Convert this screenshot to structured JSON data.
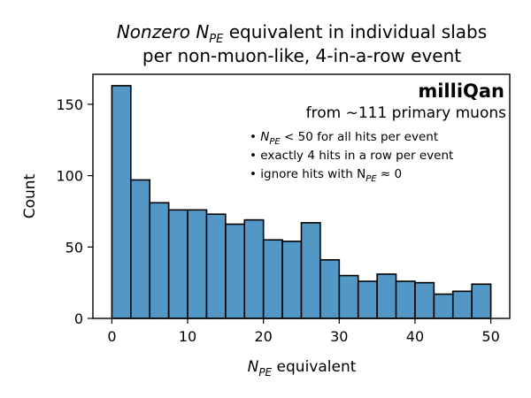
{
  "chart_data": {
    "type": "bar",
    "title_line1": "Nonzero N",
    "title_sub": "PE",
    "title_line1_rest": " equivalent in individual slabs",
    "title_line2": "per non-muon-like, 4-in-a-row event",
    "xlabel_main": "N",
    "xlabel_sub": "PE",
    "xlabel_rest": " equivalent",
    "ylabel": "Count",
    "xlim": [
      -2.5,
      52.5
    ],
    "ylim": [
      0,
      171
    ],
    "xticks": [
      0,
      10,
      20,
      30,
      40,
      50
    ],
    "yticks": [
      0,
      50,
      100,
      150
    ],
    "bin_edges": [
      0,
      2.5,
      5,
      7.5,
      10,
      12.5,
      15,
      17.5,
      20,
      22.5,
      25,
      27.5,
      30,
      32.5,
      35,
      37.5,
      40,
      42.5,
      45,
      47.5,
      50
    ],
    "values": [
      163,
      97,
      81,
      76,
      76,
      73,
      66,
      69,
      55,
      54,
      67,
      41,
      30,
      26,
      31,
      26,
      25,
      17,
      19,
      24
    ],
    "bar_color": "#5297c6",
    "annotations": {
      "brand": "milliQan",
      "subtitle": "from ~111 primary muons",
      "notes": [
        {
          "bullet": "•",
          "pre": "N",
          "sub": "PE",
          "post": " < 50 for all hits per event"
        },
        {
          "bullet": "•",
          "pre": "",
          "sub": "",
          "post": "exactly 4 hits in a row per event"
        },
        {
          "bullet": "•",
          "pre": "ignore hits with N",
          "sub": "PE",
          "post": " ≈ 0"
        }
      ]
    }
  }
}
